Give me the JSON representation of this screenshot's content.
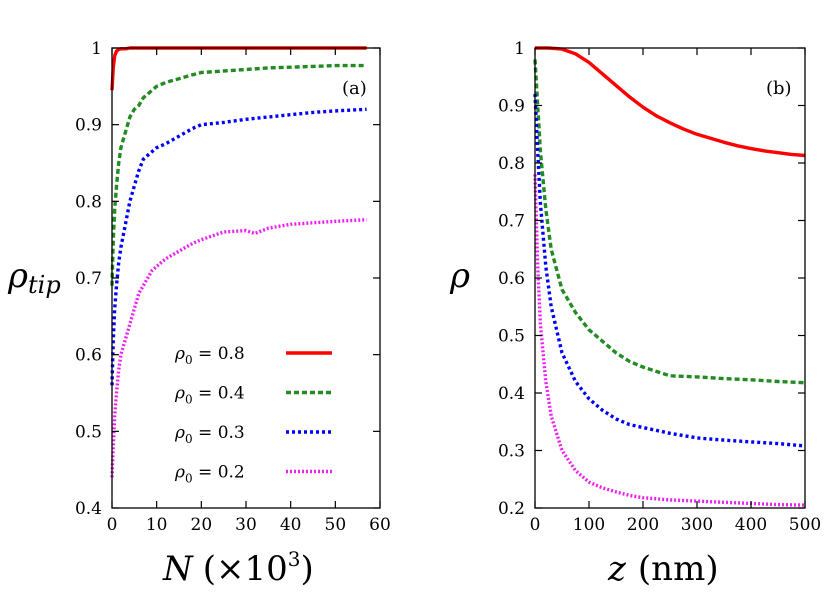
{
  "chart_data": [
    {
      "type": "line",
      "panel_label": "(a)",
      "xlabel_main": "N",
      "xlabel_suffix": "(×10",
      "xlabel_exp": "3",
      "xlabel_close": ")",
      "ylabel_main": "ρ",
      "ylabel_sub": "tip",
      "xlim": [
        0,
        60
      ],
      "ylim": [
        0.4,
        1.0
      ],
      "xticks": [
        "0",
        "10",
        "20",
        "30",
        "40",
        "50",
        "60"
      ],
      "yticks": [
        "0.4",
        "0.5",
        "0.6",
        "0.7",
        "0.8",
        "0.9",
        "1"
      ],
      "legend_position": "bottom-center",
      "series": [
        {
          "name": "ρ0 = 0.8",
          "label_main": "ρ",
          "label_sub": "0",
          "label_value": " = 0.8",
          "color": "#ff0000",
          "dash": "",
          "x": [
            0,
            0.3,
            0.6,
            1,
            1.5,
            2,
            3,
            4,
            6,
            8,
            12,
            20,
            30,
            40,
            57
          ],
          "y": [
            0.945,
            0.975,
            0.99,
            0.996,
            0.998,
            0.999,
            0.999,
            1.0,
            1.0,
            1.0,
            1.0,
            1.0,
            1.0,
            1.0,
            1.0
          ]
        },
        {
          "name": "ρ0 = 0.4",
          "label_main": "ρ",
          "label_sub": "0",
          "label_value": " = 0.4",
          "color": "#228b22",
          "dash": "5,3",
          "x": [
            0,
            0.3,
            0.6,
            1,
            1.5,
            2,
            3,
            4,
            5,
            6,
            7,
            8,
            10,
            12,
            15,
            18,
            20,
            25,
            30,
            35,
            40,
            45,
            50,
            57
          ],
          "y": [
            0.69,
            0.75,
            0.79,
            0.82,
            0.85,
            0.87,
            0.89,
            0.91,
            0.92,
            0.925,
            0.935,
            0.94,
            0.95,
            0.955,
            0.96,
            0.965,
            0.968,
            0.97,
            0.972,
            0.974,
            0.975,
            0.976,
            0.977,
            0.977
          ]
        },
        {
          "name": "ρ0 = 0.3",
          "label_main": "ρ",
          "label_sub": "0",
          "label_value": " = 0.3",
          "color": "#0000ff",
          "dash": "3,3",
          "x": [
            0,
            0.3,
            0.6,
            1,
            1.5,
            2,
            3,
            4,
            5,
            6,
            7,
            8,
            10,
            12,
            15,
            18,
            20,
            25,
            30,
            35,
            40,
            45,
            50,
            57
          ],
          "y": [
            0.56,
            0.62,
            0.66,
            0.69,
            0.72,
            0.74,
            0.77,
            0.8,
            0.82,
            0.84,
            0.855,
            0.86,
            0.87,
            0.875,
            0.885,
            0.895,
            0.9,
            0.903,
            0.907,
            0.91,
            0.913,
            0.916,
            0.918,
            0.92
          ]
        },
        {
          "name": "ρ0 = 0.2",
          "label_main": "ρ",
          "label_sub": "0",
          "label_value": " = 0.2",
          "color": "#ee22ee",
          "dash": "2,2",
          "x": [
            0,
            0.3,
            0.6,
            1,
            1.5,
            2,
            3,
            4,
            5,
            6,
            7,
            8,
            9,
            10,
            12,
            15,
            18,
            20,
            25,
            30,
            32,
            35,
            40,
            45,
            50,
            57
          ],
          "y": [
            0.44,
            0.48,
            0.52,
            0.55,
            0.58,
            0.6,
            0.62,
            0.64,
            0.66,
            0.68,
            0.69,
            0.7,
            0.71,
            0.715,
            0.725,
            0.735,
            0.745,
            0.75,
            0.76,
            0.762,
            0.758,
            0.765,
            0.77,
            0.772,
            0.774,
            0.776
          ]
        }
      ]
    },
    {
      "type": "line",
      "panel_label": "(b)",
      "xlabel_main": "z",
      "xlabel_unit": "(nm)",
      "ylabel_main": "ρ",
      "xlim": [
        0,
        500
      ],
      "ylim": [
        0.2,
        1.0
      ],
      "xticks": [
        "0",
        "100",
        "200",
        "300",
        "400",
        "500"
      ],
      "yticks": [
        "0.2",
        "0.3",
        "0.4",
        "0.5",
        "0.6",
        "0.7",
        "0.8",
        "0.9",
        "1"
      ],
      "series": [
        {
          "name": "ρ0 = 0.8",
          "color": "#ff0000",
          "dash": "",
          "x": [
            0,
            25,
            50,
            75,
            100,
            125,
            150,
            175,
            200,
            225,
            250,
            275,
            300,
            325,
            350,
            375,
            400,
            425,
            450,
            475,
            500
          ],
          "y": [
            1.0,
            1.0,
            0.998,
            0.99,
            0.975,
            0.955,
            0.935,
            0.915,
            0.897,
            0.882,
            0.87,
            0.859,
            0.85,
            0.843,
            0.836,
            0.83,
            0.825,
            0.821,
            0.818,
            0.815,
            0.813
          ]
        },
        {
          "name": "ρ0 = 0.4",
          "color": "#228b22",
          "dash": "5,3",
          "x": [
            0,
            5,
            10,
            20,
            30,
            50,
            75,
            100,
            125,
            150,
            175,
            200,
            250,
            300,
            350,
            400,
            450,
            500
          ],
          "y": [
            0.98,
            0.9,
            0.82,
            0.72,
            0.65,
            0.58,
            0.54,
            0.51,
            0.49,
            0.47,
            0.455,
            0.445,
            0.43,
            0.428,
            0.425,
            0.423,
            0.42,
            0.418
          ]
        },
        {
          "name": "ρ0 = 0.3",
          "color": "#0000ff",
          "dash": "3,3",
          "x": [
            0,
            5,
            10,
            20,
            30,
            50,
            75,
            100,
            125,
            150,
            175,
            200,
            250,
            300,
            350,
            400,
            450,
            500
          ],
          "y": [
            0.92,
            0.82,
            0.73,
            0.62,
            0.55,
            0.47,
            0.42,
            0.39,
            0.37,
            0.355,
            0.345,
            0.34,
            0.33,
            0.322,
            0.318,
            0.315,
            0.312,
            0.308
          ]
        },
        {
          "name": "ρ0 = 0.2",
          "color": "#ee22ee",
          "dash": "2,2",
          "x": [
            0,
            5,
            10,
            20,
            30,
            50,
            75,
            100,
            125,
            150,
            175,
            200,
            250,
            300,
            350,
            400,
            450,
            500
          ],
          "y": [
            0.78,
            0.62,
            0.52,
            0.42,
            0.36,
            0.3,
            0.265,
            0.245,
            0.235,
            0.228,
            0.222,
            0.218,
            0.214,
            0.212,
            0.21,
            0.208,
            0.206,
            0.205
          ]
        }
      ]
    }
  ]
}
